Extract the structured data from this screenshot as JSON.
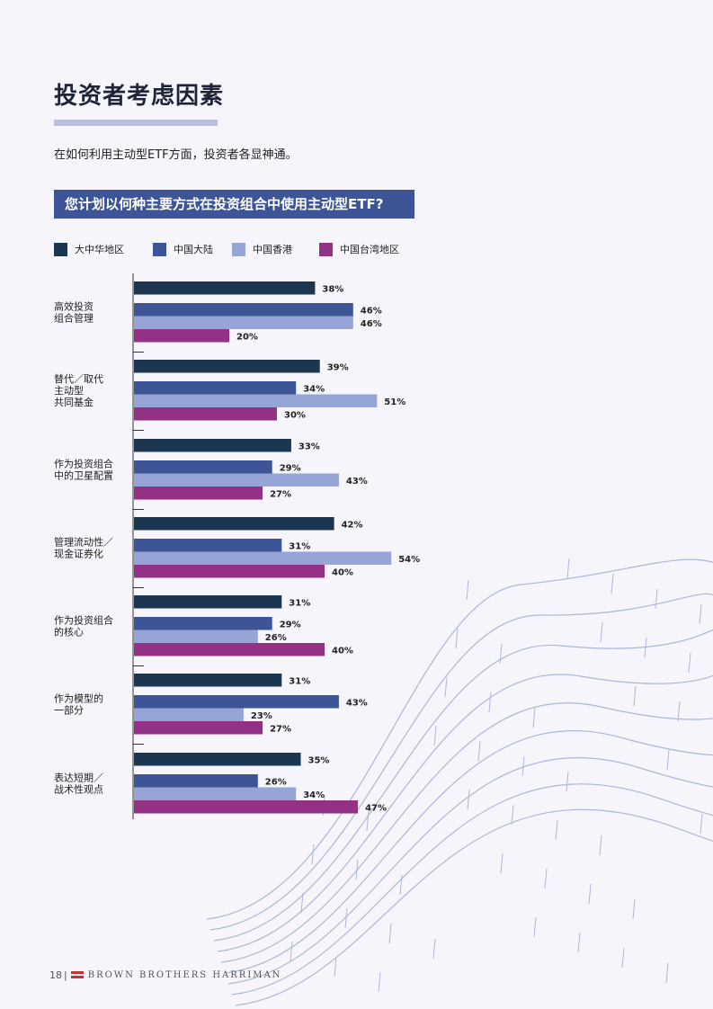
{
  "header": {
    "title": "投资者考虑因素",
    "subtitle": "在如何利用主动型ETF方面，投资者各显神通。",
    "question": "您计划以何种主要方式在投资组合中使用主动型ETF?"
  },
  "colors": {
    "accent_rule": "#b9bee3",
    "banner": "#3d5497",
    "background": "#f5f5fb",
    "series": [
      "#1c3550",
      "#3d5497",
      "#97a4d6",
      "#933284"
    ]
  },
  "chart_data": {
    "type": "bar",
    "orientation": "horizontal",
    "title": "",
    "xlabel": "",
    "ylabel": "",
    "xlim": [
      0,
      100
    ],
    "grid": false,
    "legend_position": "top",
    "categories": [
      [
        "高效投资",
        "组合管理"
      ],
      [
        "替代／取代",
        "主动型",
        "共同基金"
      ],
      [
        "作为投资组合",
        "中的卫星配置"
      ],
      [
        "管理流动性／",
        "现金证券化"
      ],
      [
        "作为投资组合",
        "的核心"
      ],
      [
        "作为模型的",
        "一部分"
      ],
      [
        "表达短期／",
        "战术性观点"
      ]
    ],
    "series": [
      {
        "name": "大中华地区",
        "values": [
          38,
          39,
          33,
          42,
          31,
          31,
          35
        ],
        "labels": [
          "38%",
          "39%",
          "33%",
          "42%",
          "31%",
          "31%",
          "35%"
        ]
      },
      {
        "name": "中国大陆",
        "values": [
          46,
          34,
          29,
          31,
          29,
          43,
          26
        ],
        "labels": [
          "46%",
          "34%",
          "29%",
          "31%",
          "29%",
          "43%",
          "26%"
        ]
      },
      {
        "name": "中国香港",
        "values": [
          46,
          51,
          43,
          54,
          26,
          23,
          34
        ],
        "labels": [
          "46%",
          "51%",
          "43%",
          "54%",
          "26%",
          "23%",
          "34%"
        ]
      },
      {
        "name": "中国台湾地区",
        "values": [
          20,
          30,
          27,
          40,
          40,
          27,
          47
        ],
        "labels": [
          "20%",
          "30%",
          "27%",
          "40%",
          "40%",
          "27%",
          "47%"
        ]
      }
    ]
  },
  "footer": {
    "page_number": "18",
    "separator": "|",
    "brand": "BROWN BROTHERS HARRIMAN"
  }
}
